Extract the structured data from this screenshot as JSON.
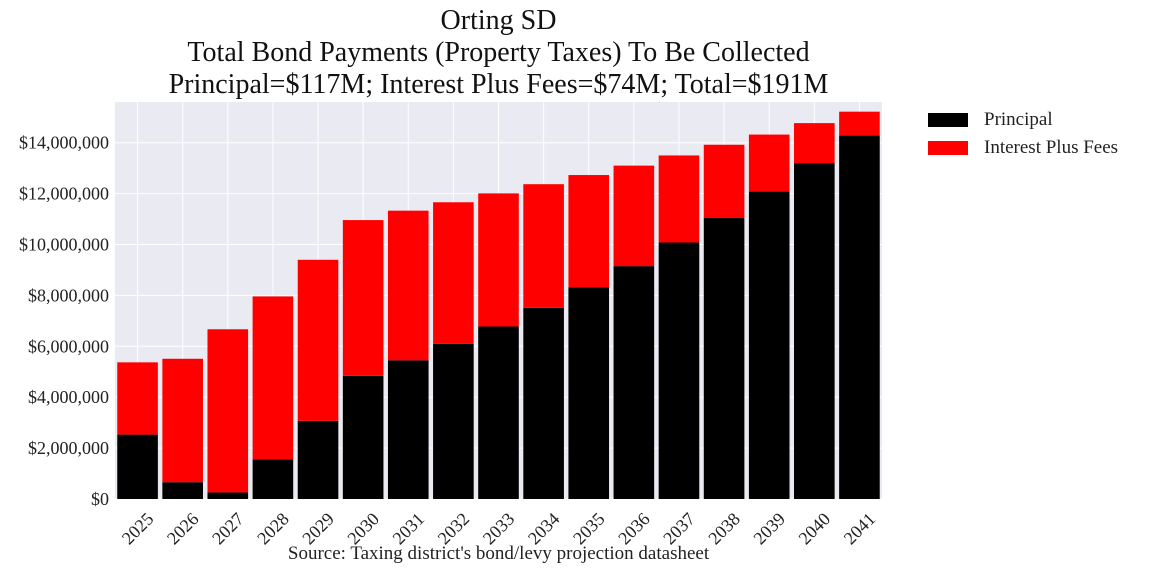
{
  "chart_data": {
    "type": "bar",
    "stacked": true,
    "title": [
      "Orting SD",
      "Total Bond Payments (Property Taxes) To Be Collected",
      "Principal=$117M; Interest Plus Fees=$74M; Total=$191M"
    ],
    "xlabel": "Source: Taxing district's bond/levy projection datasheet",
    "ylabel": "",
    "categories": [
      "2025",
      "2026",
      "2027",
      "2028",
      "2029",
      "2030",
      "2031",
      "2032",
      "2033",
      "2034",
      "2035",
      "2036",
      "2037",
      "2038",
      "2039",
      "2040",
      "2041"
    ],
    "series": [
      {
        "name": "Principal",
        "color": "#000000",
        "values": [
          2530000,
          660000,
          260000,
          1560000,
          3070000,
          4840000,
          5450000,
          6100000,
          6780000,
          7510000,
          8310000,
          9150000,
          10080000,
          11040000,
          12080000,
          13200000,
          14280000
        ]
      },
      {
        "name": "Interest Plus Fees",
        "color": "#ff0000",
        "values": [
          2840000,
          4850000,
          6410000,
          6400000,
          6330000,
          6120000,
          5880000,
          5560000,
          5230000,
          4860000,
          4420000,
          3950000,
          3420000,
          2880000,
          2240000,
          1570000,
          940000
        ]
      }
    ],
    "ylim": [
      0,
      15600000
    ],
    "yticks": [
      0,
      2000000,
      4000000,
      6000000,
      8000000,
      10000000,
      12000000,
      14000000
    ],
    "ytick_labels": [
      "$0",
      "$2,000,000",
      "$4,000,000",
      "$6,000,000",
      "$8,000,000",
      "$10,000,000",
      "$12,000,000",
      "$14,000,000"
    ],
    "grid": true,
    "legend_position": "outside-top-right",
    "plot_background": "#eaeaf2"
  }
}
